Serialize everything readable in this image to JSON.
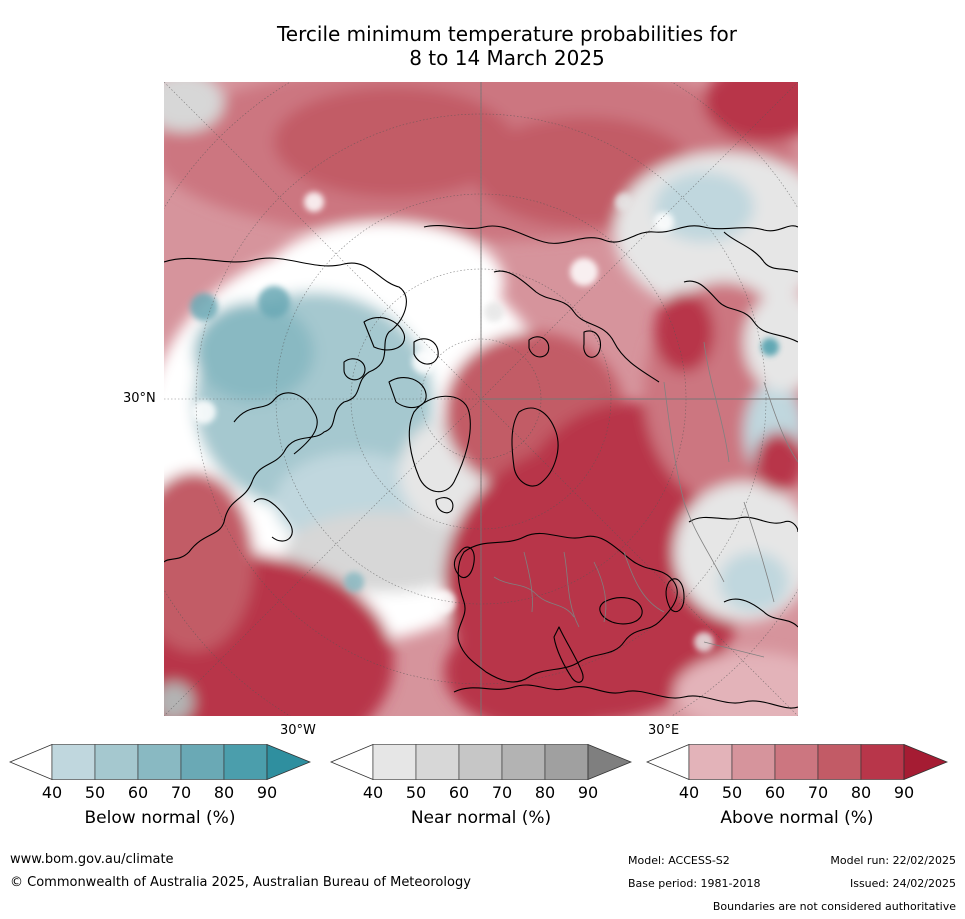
{
  "title_line1": "Tercile minimum temperature probabilities for",
  "title_line2": "8 to 14 March 2025",
  "map_labels": {
    "lat_30n": "30°N",
    "lon_30w": "30°W",
    "lon_30e": "30°E"
  },
  "legend": {
    "ticks": [
      "40",
      "50",
      "60",
      "70",
      "80",
      "90"
    ],
    "below": {
      "label": "Below normal (%)",
      "colors": [
        "#ffffff",
        "#c0d7de",
        "#a5c8cf",
        "#89b9c2",
        "#6aa9b5",
        "#4b9eac",
        "#2f8f9f"
      ]
    },
    "near": {
      "label": "Near normal (%)",
      "colors": [
        "#ffffff",
        "#e6e6e6",
        "#d7d7d7",
        "#c6c6c6",
        "#b3b3b3",
        "#a0a0a0",
        "#7f7f7f"
      ]
    },
    "above": {
      "label": "Above normal (%)",
      "colors": [
        "#ffffff",
        "#e3b3b9",
        "#d6949c",
        "#cc7680",
        "#c25b66",
        "#b8364a",
        "#a51c33"
      ]
    }
  },
  "footer": {
    "website": "www.bom.gov.au/climate",
    "copyright": "© Commonwealth of Australia 2025, Australian Bureau of Meteorology",
    "model": "Model: ACCESS-S2",
    "model_run": "Model run: 22/02/2025",
    "base_period": "Base period: 1981-2018",
    "issued": "Issued: 24/02/2025",
    "disclaimer": "Boundaries are not considered authoritative"
  }
}
